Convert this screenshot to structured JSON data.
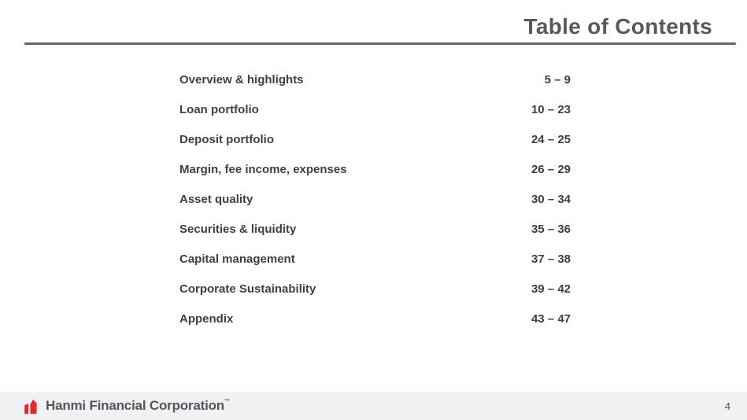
{
  "slide": {
    "title": "Table of Contents",
    "page_number": "4"
  },
  "toc": {
    "entries": [
      {
        "label": "Overview & highlights",
        "pages": "5 – 9"
      },
      {
        "label": "Loan portfolio",
        "pages": "10 – 23"
      },
      {
        "label": "Deposit portfolio",
        "pages": "24 – 25"
      },
      {
        "label": "Margin, fee income, expenses",
        "pages": "26 – 29"
      },
      {
        "label": "Asset quality",
        "pages": "30 – 34"
      },
      {
        "label": "Securities & liquidity",
        "pages": "35 – 36"
      },
      {
        "label": "Capital management",
        "pages": "37 – 38"
      },
      {
        "label": "Corporate Sustainability",
        "pages": "39 – 42"
      },
      {
        "label": "Appendix",
        "pages": "43 – 47"
      }
    ]
  },
  "footer": {
    "company": "Hanmi Financial Corporation",
    "trademark": "™"
  },
  "colors": {
    "title": "#58595b",
    "rule": "#5e6b74",
    "text": "#3f4042",
    "footer_bg": "#f0f1f3",
    "brand_red": "#e2262c",
    "footer_text": "#54565a"
  }
}
